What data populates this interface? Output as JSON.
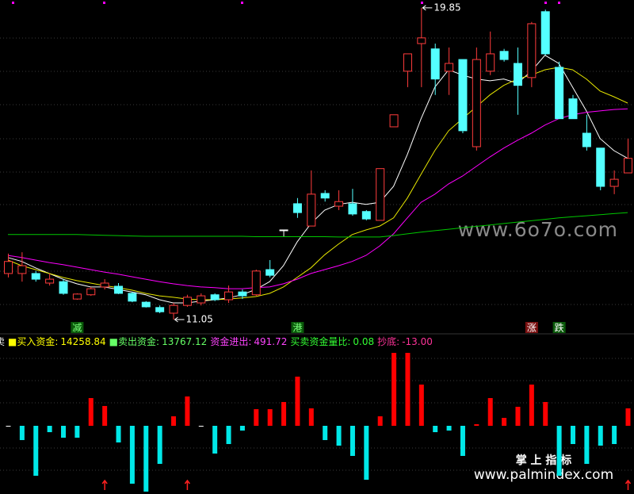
{
  "chart_data": {
    "type": "candlestick",
    "open": [
      12.35,
      12.35,
      12.35,
      12.08,
      12.12,
      11.63,
      11.75,
      11.97,
      11.99,
      11.79,
      11.54,
      11.39,
      11.23,
      11.45,
      11.52,
      11.75,
      11.61,
      11.83,
      11.75,
      12.46,
      13.58,
      14.32,
      13.69,
      14.61,
      14.25,
      14.32,
      14.1,
      13.85,
      16.49,
      18.06,
      18.84,
      18.69,
      18.06,
      18.39,
      15.93,
      18.06,
      18.62,
      18.28,
      17.88,
      19.74,
      18.17,
      17.28,
      16.31,
      15.89,
      14.81,
      15.19
    ],
    "close": [
      12.69,
      12.57,
      12.19,
      12.19,
      11.79,
      11.77,
      11.92,
      12.08,
      11.79,
      11.57,
      11.41,
      11.27,
      11.45,
      11.68,
      11.72,
      11.61,
      11.83,
      11.72,
      12.42,
      12.3,
      13.58,
      14.07,
      14.59,
      14.48,
      14.38,
      14.03,
      13.89,
      15.31,
      16.83,
      18.55,
      19.0,
      17.84,
      18.28,
      16.38,
      18.39,
      18.55,
      18.39,
      17.66,
      19.4,
      18.55,
      16.72,
      16.72,
      15.93,
      14.81,
      15.01,
      15.6
    ],
    "high": [
      12.91,
      12.95,
      12.42,
      12.35,
      12.19,
      11.79,
      11.97,
      12.19,
      12.08,
      11.83,
      11.57,
      11.45,
      11.52,
      11.75,
      11.79,
      11.79,
      12.01,
      11.9,
      12.46,
      12.73,
      13.58,
      14.48,
      15.26,
      14.7,
      14.7,
      14.74,
      14.14,
      15.31,
      16.83,
      18.55,
      19.85,
      18.84,
      18.73,
      18.39,
      18.73,
      19.18,
      18.69,
      18.73,
      19.45,
      19.8,
      18.33,
      17.39,
      16.83,
      15.89,
      15.26,
      16.16
    ],
    "low": [
      12.24,
      12.12,
      12.12,
      12.01,
      11.75,
      11.61,
      11.72,
      11.9,
      11.77,
      11.54,
      11.39,
      11.23,
      11.05,
      11.41,
      11.45,
      11.57,
      11.52,
      11.63,
      11.72,
      12.24,
      13.4,
      13.92,
      13.69,
      14.38,
      14.14,
      13.98,
      13.85,
      13.85,
      16.49,
      17.61,
      17.61,
      17.39,
      17.39,
      16.31,
      15.82,
      17.95,
      18.33,
      16.83,
      17.61,
      18.51,
      16.72,
      16.72,
      15.82,
      14.7,
      14.59,
      15.19
    ],
    "up_color": "#ff3c3c",
    "down_color": "#54ffff",
    "flat_color": "#ffffff",
    "ylim": [
      10.67,
      20.07
    ],
    "series": [
      {
        "color": "#ffffff",
        "values": [
          12.8,
          12.69,
          12.51,
          12.35,
          12.19,
          12.06,
          11.97,
          11.97,
          11.9,
          11.83,
          11.75,
          11.61,
          11.52,
          11.52,
          11.57,
          11.61,
          11.66,
          11.75,
          11.9,
          12.12,
          12.57,
          13.24,
          13.76,
          14.14,
          14.3,
          14.36,
          14.3,
          14.36,
          14.81,
          15.71,
          16.72,
          17.61,
          18.1,
          17.95,
          17.84,
          17.79,
          17.84,
          17.72,
          18.06,
          18.51,
          18.28,
          17.61,
          16.94,
          16.16,
          15.82,
          15.6
        ]
      },
      {
        "color": "#e6e600",
        "values": [
          12.73,
          12.57,
          12.46,
          12.35,
          12.24,
          12.15,
          12.08,
          12.01,
          11.95,
          11.88,
          11.79,
          11.72,
          11.68,
          11.63,
          11.61,
          11.61,
          11.63,
          11.66,
          11.7,
          11.79,
          11.97,
          12.24,
          12.51,
          12.88,
          13.18,
          13.45,
          13.58,
          13.69,
          13.92,
          14.48,
          15.15,
          15.82,
          16.38,
          16.72,
          17.05,
          17.39,
          17.66,
          17.84,
          17.95,
          18.1,
          18.17,
          18.1,
          17.84,
          17.5,
          17.34,
          17.16
        ]
      },
      {
        "color": "#ff00ff",
        "values": [
          12.86,
          12.8,
          12.73,
          12.66,
          12.6,
          12.53,
          12.46,
          12.39,
          12.33,
          12.26,
          12.19,
          12.12,
          12.06,
          12.01,
          11.97,
          11.95,
          11.92,
          11.92,
          11.95,
          11.97,
          12.06,
          12.19,
          12.35,
          12.46,
          12.57,
          12.69,
          12.86,
          13.13,
          13.47,
          13.92,
          14.36,
          14.59,
          14.88,
          15.1,
          15.37,
          15.64,
          15.89,
          16.11,
          16.31,
          16.54,
          16.72,
          16.83,
          16.9,
          16.94,
          16.98,
          17.0
        ]
      },
      {
        "color": "#00c800",
        "values": [
          13.45,
          13.45,
          13.45,
          13.45,
          13.45,
          13.45,
          13.44,
          13.43,
          13.42,
          13.41,
          13.4,
          13.4,
          13.4,
          13.4,
          13.4,
          13.4,
          13.4,
          13.4,
          13.39,
          13.39,
          13.39,
          13.39,
          13.39,
          13.39,
          13.38,
          13.38,
          13.38,
          13.38,
          13.42,
          13.47,
          13.52,
          13.56,
          13.6,
          13.64,
          13.68,
          13.72,
          13.76,
          13.8,
          13.84,
          13.88,
          13.92,
          13.95,
          13.98,
          14.01,
          14.04,
          14.07
        ]
      }
    ],
    "high_mark": 19.85,
    "low_mark": 11.05,
    "signals": [
      null,
      null,
      null,
      null,
      null,
      {
        "text": "减",
        "color": "#0a5a0a",
        "text_color": "#7cff7c"
      },
      null,
      null,
      null,
      null,
      null,
      null,
      null,
      null,
      null,
      null,
      null,
      null,
      null,
      null,
      null,
      {
        "text": "港",
        "color": "#0a5a0a",
        "text_color": "#7cff7c"
      },
      null,
      null,
      null,
      null,
      null,
      null,
      null,
      null,
      null,
      null,
      null,
      null,
      null,
      null,
      null,
      null,
      {
        "text": "涨",
        "color": "#7a1010",
        "text_color": "#ffffff"
      },
      null,
      {
        "text": "跌",
        "color": "#0a5a0a",
        "text_color": "#ffffff"
      },
      null,
      null,
      null,
      null,
      null
    ],
    "indicator": {
      "name": "卖",
      "items": [
        {
          "label": "■买入资金:",
          "value": 14258.84,
          "color": "#ffff00"
        },
        {
          "label": "■卖出资金:",
          "value": 13767.12,
          "color": "#66ff66"
        },
        {
          "label": "资金进出:",
          "value": 491.72,
          "color": "#ff44ff"
        },
        {
          "label": "买卖资金量比:",
          "value": 0.08,
          "color": "#33ff33"
        },
        {
          "label": "抄底:",
          "value": {
            "value": -13,
            "label": "-13.00"
          },
          "color": "#ff3399"
        }
      ],
      "values": [
        0,
        -402,
        -1408,
        -179,
        -335,
        -335,
        782,
        559,
        -469,
        -1632,
        -1855,
        -1073,
        268,
        827,
        0,
        -782,
        -514,
        -134,
        469,
        469,
        671,
        1386,
        492,
        -402,
        -559,
        -849,
        -1520,
        268,
        2056,
        2056,
        1162,
        -179,
        -134,
        -849,
        45,
        782,
        224,
        536,
        1162,
        671,
        -1408,
        -514,
        -1073,
        -559,
        -514,
        491.72
      ],
      "up_color": "#ff0000",
      "down_color": "#00e8e8",
      "ylim": [
        -1922,
        2168
      ],
      "arrow_days": [
        7,
        13,
        45
      ]
    },
    "watermark": "www.6o7o.com",
    "logo_title": "掌 上 指 标",
    "logo_url": "www.palmindex.com"
  }
}
